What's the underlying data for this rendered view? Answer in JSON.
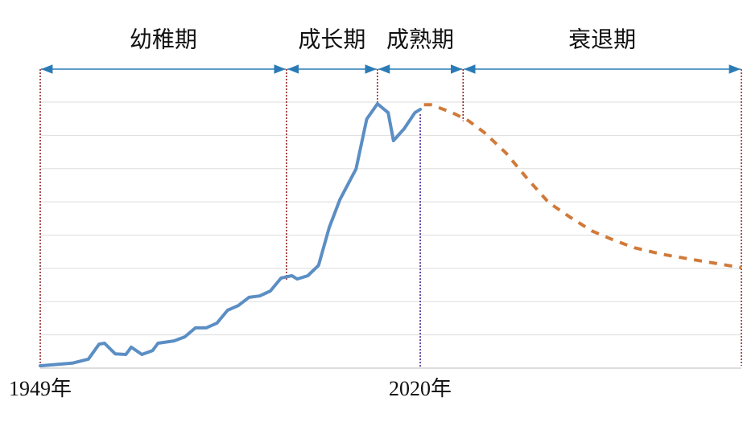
{
  "chart_data": {
    "type": "line",
    "phases": [
      {
        "label": "幼稚期",
        "start": 1949,
        "end": 1995
      },
      {
        "label": "成长期",
        "start": 1995,
        "end": 2012
      },
      {
        "label": "成熟期",
        "start": 2012,
        "end": 2028
      },
      {
        "label": "衰退期",
        "start": 2028,
        "end": 2080
      }
    ],
    "marker_year": 2020,
    "xlim": [
      1949,
      2080
    ],
    "xticks": [
      {
        "value": 1949,
        "label": "1949年"
      },
      {
        "value": 2020,
        "label": "2020年"
      }
    ],
    "ylim": [
      0,
      8
    ],
    "yticks": [
      0,
      1,
      2,
      3,
      4,
      5,
      6,
      7,
      8
    ],
    "grid": true,
    "series": [
      {
        "name": "historical",
        "color": "#5b8ec4",
        "dash": false,
        "x": [
          1949,
          1955,
          1958,
          1960,
          1961,
          1963,
          1965,
          1966,
          1968,
          1970,
          1971,
          1974,
          1976,
          1978,
          1980,
          1982,
          1984,
          1986,
          1988,
          1990,
          1992,
          1994,
          1996,
          1997,
          1999,
          2001,
          2003,
          2005,
          2008,
          2010,
          2012,
          2014,
          2015,
          2017,
          2019,
          2020
        ],
        "values": [
          0.07,
          0.15,
          0.27,
          0.72,
          0.75,
          0.43,
          0.41,
          0.63,
          0.41,
          0.53,
          0.75,
          0.82,
          0.94,
          1.21,
          1.21,
          1.35,
          1.74,
          1.88,
          2.13,
          2.17,
          2.32,
          2.71,
          2.78,
          2.68,
          2.78,
          3.09,
          4.23,
          5.07,
          5.99,
          7.49,
          7.95,
          7.68,
          6.84,
          7.2,
          7.68,
          7.78
        ]
      },
      {
        "name": "forecast",
        "color": "#d07a3a",
        "dash": true,
        "x": [
          2020.7,
          2022,
          2026,
          2029,
          2032,
          2036,
          2040,
          2044,
          2048,
          2052,
          2056,
          2060,
          2065,
          2070,
          2080
        ],
        "values": [
          7.92,
          7.92,
          7.68,
          7.44,
          7.08,
          6.47,
          5.7,
          4.98,
          4.54,
          4.13,
          3.86,
          3.62,
          3.43,
          3.29,
          3.02
        ]
      }
    ]
  }
}
